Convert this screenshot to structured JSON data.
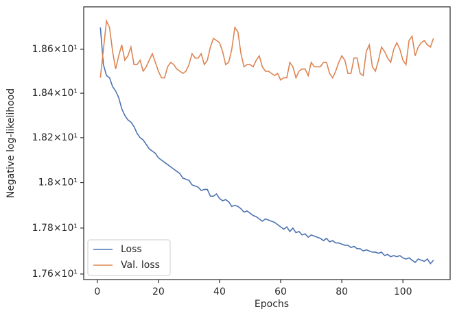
{
  "chart_data": {
    "type": "line",
    "xlabel": "Epochs",
    "ylabel": "Negative log-likelihood",
    "x": [
      1,
      2,
      3,
      4,
      5,
      6,
      7,
      8,
      9,
      10,
      11,
      12,
      13,
      14,
      15,
      16,
      17,
      18,
      19,
      20,
      21,
      22,
      23,
      24,
      25,
      26,
      27,
      28,
      29,
      30,
      31,
      32,
      33,
      34,
      35,
      36,
      37,
      38,
      39,
      40,
      41,
      42,
      43,
      44,
      45,
      46,
      47,
      48,
      49,
      50,
      51,
      52,
      53,
      54,
      55,
      56,
      57,
      58,
      59,
      60,
      61,
      62,
      63,
      64,
      65,
      66,
      67,
      68,
      69,
      70,
      71,
      72,
      73,
      74,
      75,
      76,
      77,
      78,
      79,
      80,
      81,
      82,
      83,
      84,
      85,
      86,
      87,
      88,
      89,
      90,
      91,
      92,
      93,
      94,
      95,
      96,
      97,
      98,
      99,
      100,
      101,
      102,
      103,
      104,
      105,
      106,
      107,
      108,
      109,
      110
    ],
    "series": [
      {
        "name": "Loss",
        "color": "#4c72b0",
        "values": [
          18.7,
          18.53,
          18.48,
          18.47,
          18.43,
          18.41,
          18.38,
          18.33,
          18.3,
          18.28,
          18.27,
          18.25,
          18.22,
          18.2,
          18.19,
          18.17,
          18.15,
          18.14,
          18.13,
          18.11,
          18.1,
          18.09,
          18.08,
          18.07,
          18.06,
          18.05,
          18.04,
          18.02,
          18.015,
          18.01,
          17.99,
          17.985,
          17.98,
          17.965,
          17.97,
          17.97,
          17.94,
          17.94,
          17.95,
          17.93,
          17.92,
          17.925,
          17.915,
          17.895,
          17.9,
          17.895,
          17.885,
          17.87,
          17.875,
          17.865,
          17.855,
          17.85,
          17.84,
          17.83,
          17.84,
          17.835,
          17.83,
          17.825,
          17.815,
          17.805,
          17.795,
          17.805,
          17.785,
          17.8,
          17.78,
          17.785,
          17.77,
          17.775,
          17.76,
          17.77,
          17.765,
          17.76,
          17.755,
          17.745,
          17.755,
          17.74,
          17.745,
          17.735,
          17.735,
          17.73,
          17.725,
          17.725,
          17.715,
          17.72,
          17.71,
          17.71,
          17.7,
          17.705,
          17.7,
          17.695,
          17.695,
          17.69,
          17.695,
          17.68,
          17.685,
          17.675,
          17.68,
          17.675,
          17.68,
          17.67,
          17.665,
          17.67,
          17.66,
          17.65,
          17.665,
          17.66,
          17.655,
          17.665,
          17.645,
          17.66
        ]
      },
      {
        "name": "Val. loss",
        "color": "#dd8452",
        "values": [
          18.47,
          18.6,
          18.73,
          18.7,
          18.59,
          18.51,
          18.57,
          18.62,
          18.55,
          18.57,
          18.61,
          18.53,
          18.53,
          18.55,
          18.5,
          18.52,
          18.55,
          18.58,
          18.54,
          18.5,
          18.47,
          18.47,
          18.52,
          18.54,
          18.53,
          18.51,
          18.5,
          18.49,
          18.5,
          18.53,
          18.58,
          18.56,
          18.56,
          18.58,
          18.53,
          18.55,
          18.61,
          18.65,
          18.64,
          18.63,
          18.59,
          18.53,
          18.54,
          18.6,
          18.7,
          18.68,
          18.58,
          18.52,
          18.53,
          18.53,
          18.52,
          18.55,
          18.57,
          18.52,
          18.5,
          18.5,
          18.49,
          18.48,
          18.49,
          18.46,
          18.47,
          18.47,
          18.54,
          18.52,
          18.47,
          18.5,
          18.51,
          18.51,
          18.48,
          18.54,
          18.52,
          18.52,
          18.52,
          18.54,
          18.54,
          18.49,
          18.47,
          18.5,
          18.54,
          18.57,
          18.55,
          18.49,
          18.49,
          18.56,
          18.56,
          18.49,
          18.48,
          18.59,
          18.62,
          18.52,
          18.5,
          18.55,
          18.61,
          18.59,
          18.56,
          18.54,
          18.6,
          18.63,
          18.6,
          18.55,
          18.53,
          18.64,
          18.66,
          18.57,
          18.61,
          18.63,
          18.64,
          18.62,
          18.61,
          18.65
        ]
      }
    ],
    "xlim": [
      -4.45,
      115.45
    ],
    "xticks": [
      0,
      20,
      40,
      60,
      80,
      100
    ],
    "ylim": [
      17.576,
      18.795
    ],
    "ylog": true,
    "yticks": [
      {
        "value": 17.6,
        "label": "1.76×10¹"
      },
      {
        "value": 17.8,
        "label": "1.78×10¹"
      },
      {
        "value": 18,
        "label": "1.8×10¹"
      },
      {
        "value": 18.2,
        "label": "1.82×10¹"
      },
      {
        "value": 18.4,
        "label": "1.84×10¹"
      },
      {
        "value": 18.6,
        "label": "1.86×10¹"
      }
    ],
    "legend": "lower left",
    "grid": false
  }
}
